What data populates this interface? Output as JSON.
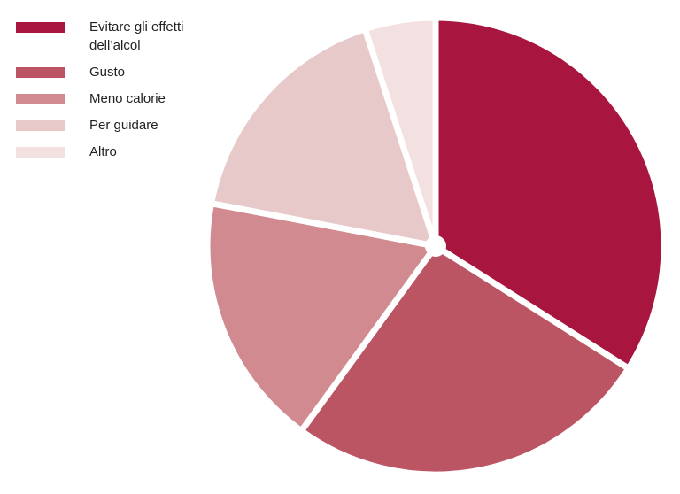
{
  "chart_data": {
    "type": "pie",
    "categories": [
      "Evitare gli effetti dell’alcol",
      "Gusto",
      "Meno calorie",
      "Per guidare",
      "Altro"
    ],
    "values": [
      34,
      26,
      18,
      17,
      5
    ],
    "colors": [
      "#a8163f",
      "#bb5563",
      "#d08a90",
      "#e8c9ca",
      "#f3e0e0"
    ]
  }
}
